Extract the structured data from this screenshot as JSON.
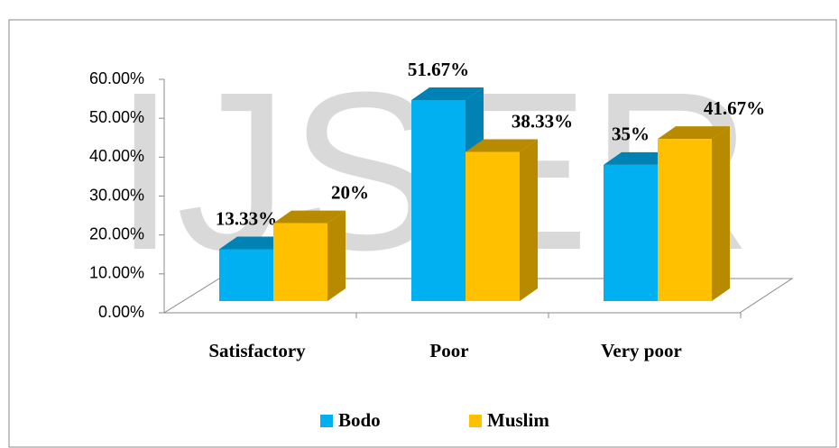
{
  "chart_data": {
    "type": "bar3d",
    "watermark": "IJSER",
    "categories": [
      "Satisfactory",
      "Poor",
      "Very poor"
    ],
    "series": [
      {
        "name": "Bodo",
        "color": "#00b0f0",
        "side": "#0082b4",
        "values": [
          13.33,
          51.67,
          35
        ],
        "value_labels": [
          "13.33%",
          "51.67%",
          "35%"
        ]
      },
      {
        "name": "Muslim",
        "color": "#ffc000",
        "side": "#b88a00",
        "values": [
          20,
          38.33,
          41.67
        ],
        "value_labels": [
          "20%",
          "38.33%",
          "41.67%"
        ]
      }
    ],
    "ylim": [
      0,
      60
    ],
    "yticks": [
      {
        "value": 0,
        "label": "0.00%"
      },
      {
        "value": 10,
        "label": "10.00%"
      },
      {
        "value": 20,
        "label": "20.00%"
      },
      {
        "value": 30,
        "label": "30.00%"
      },
      {
        "value": 40,
        "label": "40.00%"
      },
      {
        "value": 50,
        "label": "50.00%"
      },
      {
        "value": 60,
        "label": "60.00%"
      }
    ],
    "legend": "bottom"
  }
}
